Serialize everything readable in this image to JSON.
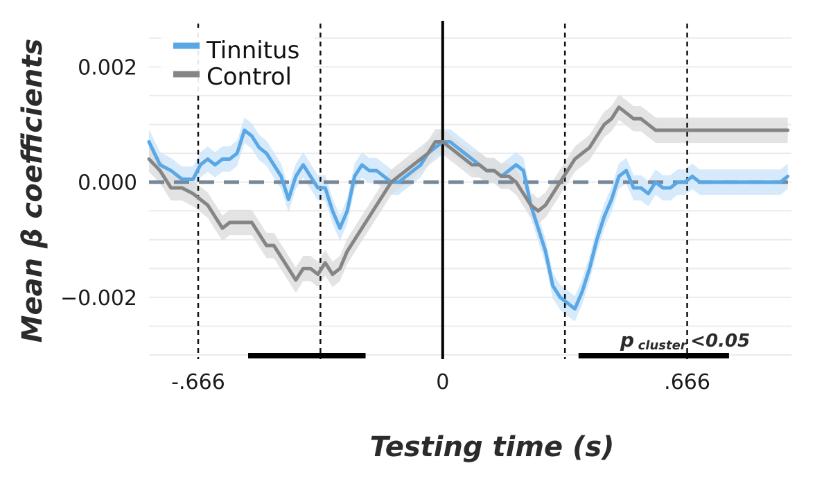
{
  "chart_data": {
    "type": "line",
    "title": "",
    "xlabel": "Testing time (s)",
    "ylabel": "Mean β coefficients",
    "xlim": [
      -0.8,
      0.95
    ],
    "ylim": [
      -0.003,
      0.0028
    ],
    "x_ticks": [
      {
        "value": -0.666,
        "label": "-.666"
      },
      {
        "value": 0,
        "label": "0"
      },
      {
        "value": 0.666,
        "label": ".666"
      }
    ],
    "y_ticks": [
      {
        "value": 0.002,
        "label": "0.002"
      },
      {
        "value": 0.0,
        "label": "0.000"
      },
      {
        "value": -0.002,
        "label": "−0.002"
      }
    ],
    "grid": true,
    "legend": {
      "position": "top-left"
    },
    "zero_line": {
      "y": 0,
      "style": "dashed",
      "color": "#778899"
    },
    "onset_line": {
      "x": 0,
      "style": "solid",
      "color": "#000000"
    },
    "vertical_dashed_lines": [
      -0.666,
      -0.333,
      0.333,
      0.666
    ],
    "significance_bars": [
      {
        "x_start": -0.53,
        "x_end": -0.21
      },
      {
        "x_start": 0.37,
        "x_end": 0.78
      }
    ],
    "annotation": {
      "main": "p",
      "subscript": "cluster",
      "suffix": "<0.05"
    },
    "series": [
      {
        "name": "Tinnitus",
        "color": "#5aa7e6",
        "band_color": "#cfe6fa",
        "x": [
          -0.8,
          -0.77,
          -0.74,
          -0.71,
          -0.68,
          -0.66,
          -0.64,
          -0.62,
          -0.6,
          -0.58,
          -0.56,
          -0.54,
          -0.52,
          -0.5,
          -0.48,
          -0.46,
          -0.44,
          -0.42,
          -0.4,
          -0.38,
          -0.36,
          -0.34,
          -0.32,
          -0.3,
          -0.28,
          -0.26,
          -0.24,
          -0.22,
          -0.2,
          -0.18,
          -0.16,
          -0.14,
          -0.12,
          -0.1,
          -0.08,
          -0.06,
          -0.04,
          -0.02,
          0,
          0.02,
          0.04,
          0.06,
          0.08,
          0.1,
          0.12,
          0.14,
          0.16,
          0.18,
          0.2,
          0.22,
          0.24,
          0.26,
          0.28,
          0.3,
          0.32,
          0.34,
          0.36,
          0.38,
          0.4,
          0.42,
          0.44,
          0.46,
          0.48,
          0.5,
          0.52,
          0.54,
          0.56,
          0.58,
          0.6,
          0.62,
          0.64,
          0.66,
          0.68,
          0.7,
          0.72,
          0.74,
          0.76,
          0.78,
          0.8,
          0.82,
          0.84,
          0.86,
          0.88,
          0.9,
          0.92,
          0.94
        ],
        "y": [
          0.0007,
          0.0003,
          0.0002,
          5e-05,
          5e-05,
          0.0003,
          0.0004,
          0.0003,
          0.0004,
          0.0004,
          0.0005,
          0.0009,
          0.0008,
          0.0006,
          0.0005,
          0.0003,
          0.0001,
          -0.0003,
          0.0001,
          0.0003,
          0.0001,
          -0.0001,
          -0.0001,
          -0.0005,
          -0.0008,
          -0.0005,
          0.0001,
          0.0003,
          0.0002,
          0.0002,
          0.0001,
          0.0,
          0.0,
          0.0001,
          0.0002,
          0.0003,
          0.0005,
          0.0006,
          0.0007,
          0.0007,
          0.0006,
          0.0005,
          0.0004,
          0.0003,
          0.0002,
          0.0002,
          0.0001,
          0.0002,
          0.0003,
          0.0002,
          -0.0004,
          -0.0008,
          -0.0012,
          -0.0018,
          -0.002,
          -0.0021,
          -0.0022,
          -0.0019,
          -0.0015,
          -0.001,
          -0.0006,
          -0.0003,
          0.0001,
          0.0002,
          -0.0001,
          -0.0001,
          -0.0002,
          0.0,
          -0.0001,
          -0.0001,
          0.0,
          0.0,
          0.0001,
          0.0,
          0.0,
          0.0,
          0.0,
          0.0,
          0.0,
          0.0,
          0.0,
          0.0,
          0.0,
          0.0,
          0.0,
          0.0001
        ]
      },
      {
        "name": "Control",
        "color": "#858585",
        "band_color": "#dedede",
        "x": [
          -0.8,
          -0.77,
          -0.74,
          -0.71,
          -0.68,
          -0.66,
          -0.64,
          -0.62,
          -0.6,
          -0.58,
          -0.56,
          -0.54,
          -0.52,
          -0.5,
          -0.48,
          -0.46,
          -0.44,
          -0.42,
          -0.4,
          -0.38,
          -0.36,
          -0.34,
          -0.32,
          -0.3,
          -0.28,
          -0.26,
          -0.24,
          -0.22,
          -0.2,
          -0.18,
          -0.16,
          -0.14,
          -0.12,
          -0.1,
          -0.08,
          -0.06,
          -0.04,
          -0.02,
          0,
          0.02,
          0.04,
          0.06,
          0.08,
          0.1,
          0.12,
          0.14,
          0.16,
          0.18,
          0.2,
          0.22,
          0.24,
          0.26,
          0.28,
          0.3,
          0.32,
          0.34,
          0.36,
          0.38,
          0.4,
          0.42,
          0.44,
          0.46,
          0.48,
          0.5,
          0.52,
          0.54,
          0.56,
          0.58,
          0.6,
          0.62,
          0.64,
          0.66,
          0.68,
          0.7,
          0.72,
          0.74,
          0.76,
          0.78,
          0.8,
          0.82,
          0.84,
          0.86,
          0.88,
          0.9,
          0.92,
          0.94
        ],
        "y": [
          0.0004,
          0.0002,
          -0.0001,
          -0.0001,
          -0.0002,
          -0.0003,
          -0.0004,
          -0.0006,
          -0.0008,
          -0.0007,
          -0.0007,
          -0.0007,
          -0.0007,
          -0.0009,
          -0.0011,
          -0.0011,
          -0.0013,
          -0.0015,
          -0.0017,
          -0.0015,
          -0.0015,
          -0.0016,
          -0.0014,
          -0.0016,
          -0.0015,
          -0.0012,
          -0.001,
          -0.0008,
          -0.0006,
          -0.0004,
          -0.0002,
          0.0,
          0.0001,
          0.0002,
          0.0003,
          0.0004,
          0.0005,
          0.0007,
          0.0007,
          0.0006,
          0.0005,
          0.0004,
          0.0003,
          0.0003,
          0.0002,
          0.0002,
          0.0001,
          0.0001,
          0.0,
          -0.0002,
          -0.0004,
          -0.0005,
          -0.0004,
          -0.0002,
          0.0,
          0.0002,
          0.0004,
          0.0005,
          0.0006,
          0.0008,
          0.001,
          0.0011,
          0.0013,
          0.0012,
          0.0011,
          0.0011,
          0.001,
          0.0009,
          0.0009,
          0.0009,
          0.0009,
          0.0009,
          0.0009,
          0.0009,
          0.0009,
          0.0009,
          0.0009,
          0.0009,
          0.0009,
          0.0009,
          0.0009,
          0.0009,
          0.0009,
          0.0009,
          0.0009,
          0.0009
        ]
      }
    ]
  }
}
